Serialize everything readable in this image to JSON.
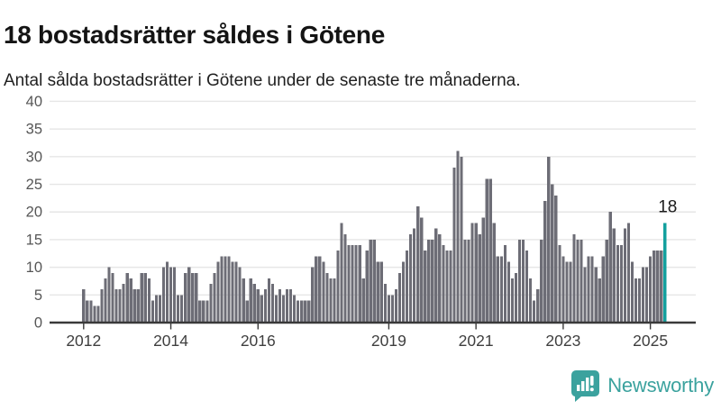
{
  "header": {
    "title": "18 bostadsrätter såldes i Götene",
    "subtitle": "Antal sålda bostadsrätter i Götene under de senaste tre månaderna."
  },
  "chart_data": {
    "type": "bar",
    "title": "18 bostadsrätter såldes i Götene",
    "subtitle": "Antal sålda bostadsrätter i Götene under de senaste tre månaderna.",
    "frequency": "monthly",
    "start": "2012-01",
    "grid": true,
    "ylim": [
      0,
      42
    ],
    "y_ticks": [
      0,
      5,
      10,
      15,
      20,
      25,
      30,
      35,
      40
    ],
    "x_ticks": [
      {
        "label": "2012",
        "month_index": 0
      },
      {
        "label": "2014",
        "month_index": 24
      },
      {
        "label": "2016",
        "month_index": 48
      },
      {
        "label": "2019",
        "month_index": 84
      },
      {
        "label": "2021",
        "month_index": 108
      },
      {
        "label": "2023",
        "month_index": 132
      },
      {
        "label": "2025",
        "month_index": 156
      }
    ],
    "series": [
      {
        "year": 2012,
        "values": [
          6,
          4,
          4,
          3,
          3,
          6,
          8,
          10,
          9,
          6,
          6,
          7
        ]
      },
      {
        "year": 2013,
        "values": [
          9,
          8,
          6,
          6,
          9,
          9,
          8,
          4,
          5,
          5,
          10,
          11
        ]
      },
      {
        "year": 2014,
        "values": [
          10,
          10,
          5,
          5,
          9,
          10,
          9,
          9,
          4,
          4,
          4,
          7
        ]
      },
      {
        "year": 2015,
        "values": [
          9,
          11,
          12,
          12,
          12,
          11,
          11,
          10,
          8,
          4,
          8,
          7
        ]
      },
      {
        "year": 2016,
        "values": [
          6,
          5,
          6,
          8,
          7,
          5,
          6,
          5,
          6,
          6,
          5,
          4
        ]
      },
      {
        "year": 2017,
        "values": [
          4,
          4,
          4,
          10,
          12,
          12,
          11,
          9,
          8,
          8,
          13,
          18
        ]
      },
      {
        "year": 2018,
        "values": [
          16,
          14,
          14,
          14,
          14,
          8,
          13,
          15,
          15,
          11,
          11,
          7
        ]
      },
      {
        "year": 2019,
        "values": [
          5,
          5,
          6,
          9,
          11,
          13,
          16,
          17,
          21,
          19,
          13,
          15
        ]
      },
      {
        "year": 2020,
        "values": [
          15,
          17,
          16,
          14,
          13,
          13,
          28,
          31,
          30,
          15,
          15,
          18
        ]
      },
      {
        "year": 2021,
        "values": [
          18,
          16,
          19,
          26,
          26,
          18,
          12,
          12,
          14,
          11,
          8,
          9
        ]
      },
      {
        "year": 2022,
        "values": [
          15,
          15,
          13,
          8,
          4,
          6,
          15,
          22,
          30,
          25,
          23,
          14
        ]
      },
      {
        "year": 2023,
        "values": [
          12,
          11,
          11,
          16,
          15,
          15,
          10,
          12,
          12,
          10,
          8,
          12
        ]
      },
      {
        "year": 2024,
        "values": [
          15,
          20,
          17,
          14,
          14,
          17,
          18,
          11,
          8,
          8,
          10,
          10
        ]
      },
      {
        "year": 2025,
        "values": [
          12,
          13,
          13,
          13,
          18
        ]
      }
    ],
    "highlight": {
      "position": "last",
      "value": 18,
      "label": "18"
    },
    "colors": {
      "bar": "#6d6d76",
      "highlight": "#13a09e",
      "grid": "#e6e6e6",
      "axis": "#3a3a3a",
      "y_tick_label": "#565656",
      "x_tick_label": "#3f3f3f",
      "annotation": "#1d1d1d"
    },
    "legend": null
  },
  "footer": {
    "brand": "Newsworthy",
    "logo_color": "#3ba29e",
    "logo_icon": "speech-bubble-bar-chart-exclamation"
  }
}
